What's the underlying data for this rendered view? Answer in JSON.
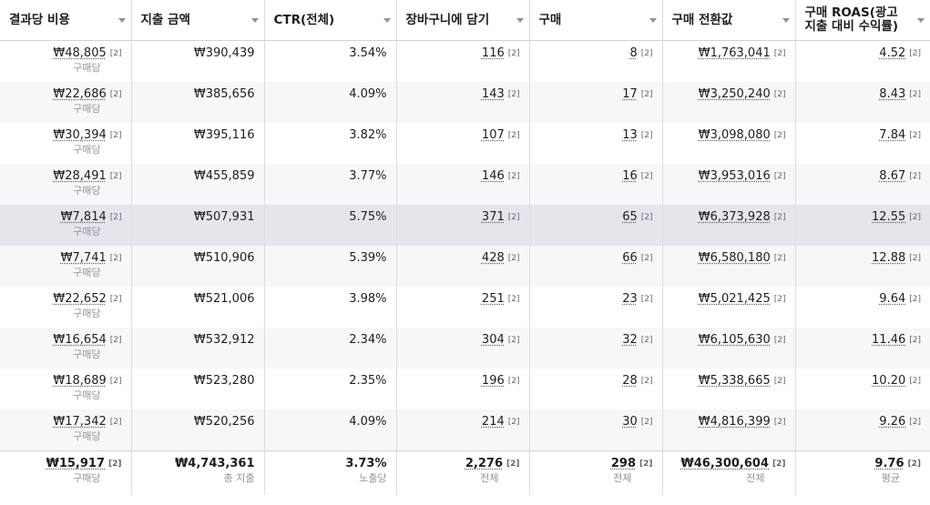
{
  "columns": [
    {
      "key": "cost_per_result",
      "label": "결과당 비용"
    },
    {
      "key": "spend",
      "label": "지출 금액"
    },
    {
      "key": "ctr",
      "label": "CTR(전체)"
    },
    {
      "key": "add_to_cart",
      "label": "장바구니에 담기"
    },
    {
      "key": "purchases",
      "label": "구매"
    },
    {
      "key": "purchase_value",
      "label": "구매 전환값"
    },
    {
      "key": "roas",
      "label": "구매 ROAS(광고 지출 대비 수익률)"
    }
  ],
  "footnote_mark": "[2]",
  "per_purchase_label": "구매당",
  "rows": [
    {
      "cost_per_result": "₩48,805",
      "spend": "₩390,439",
      "ctr": "3.54%",
      "add_to_cart": "116",
      "purchases": "8",
      "purchase_value": "₩1,763,041",
      "roas": "4.52"
    },
    {
      "cost_per_result": "₩22,686",
      "spend": "₩385,656",
      "ctr": "4.09%",
      "add_to_cart": "143",
      "purchases": "17",
      "purchase_value": "₩3,250,240",
      "roas": "8.43"
    },
    {
      "cost_per_result": "₩30,394",
      "spend": "₩395,116",
      "ctr": "3.82%",
      "add_to_cart": "107",
      "purchases": "13",
      "purchase_value": "₩3,098,080",
      "roas": "7.84"
    },
    {
      "cost_per_result": "₩28,491",
      "spend": "₩455,859",
      "ctr": "3.77%",
      "add_to_cart": "146",
      "purchases": "16",
      "purchase_value": "₩3,953,016",
      "roas": "8.67"
    },
    {
      "cost_per_result": "₩7,814",
      "spend": "₩507,931",
      "ctr": "5.75%",
      "add_to_cart": "371",
      "purchases": "65",
      "purchase_value": "₩6,373,928",
      "roas": "12.55"
    },
    {
      "cost_per_result": "₩7,741",
      "spend": "₩510,906",
      "ctr": "5.39%",
      "add_to_cart": "428",
      "purchases": "66",
      "purchase_value": "₩6,580,180",
      "roas": "12.88"
    },
    {
      "cost_per_result": "₩22,652",
      "spend": "₩521,006",
      "ctr": "3.98%",
      "add_to_cart": "251",
      "purchases": "23",
      "purchase_value": "₩5,021,425",
      "roas": "9.64"
    },
    {
      "cost_per_result": "₩16,654",
      "spend": "₩532,912",
      "ctr": "2.34%",
      "add_to_cart": "304",
      "purchases": "32",
      "purchase_value": "₩6,105,630",
      "roas": "11.46"
    },
    {
      "cost_per_result": "₩18,689",
      "spend": "₩523,280",
      "ctr": "2.35%",
      "add_to_cart": "196",
      "purchases": "28",
      "purchase_value": "₩5,338,665",
      "roas": "10.20"
    },
    {
      "cost_per_result": "₩17,342",
      "spend": "₩520,256",
      "ctr": "4.09%",
      "add_to_cart": "214",
      "purchases": "30",
      "purchase_value": "₩4,816,399",
      "roas": "9.26"
    }
  ],
  "totals": {
    "cost_per_result": "₩15,917",
    "cost_per_result_sub": "구매당",
    "spend": "₩4,743,361",
    "spend_sub": "총 지출",
    "ctr": "3.73%",
    "ctr_sub": "노출당",
    "add_to_cart": "2,276",
    "add_to_cart_sub": "전체",
    "purchases": "298",
    "purchases_sub": "전체",
    "purchase_value": "₩46,300,604",
    "purchase_value_sub": "전체",
    "roas": "9.76",
    "roas_sub": "평균"
  }
}
